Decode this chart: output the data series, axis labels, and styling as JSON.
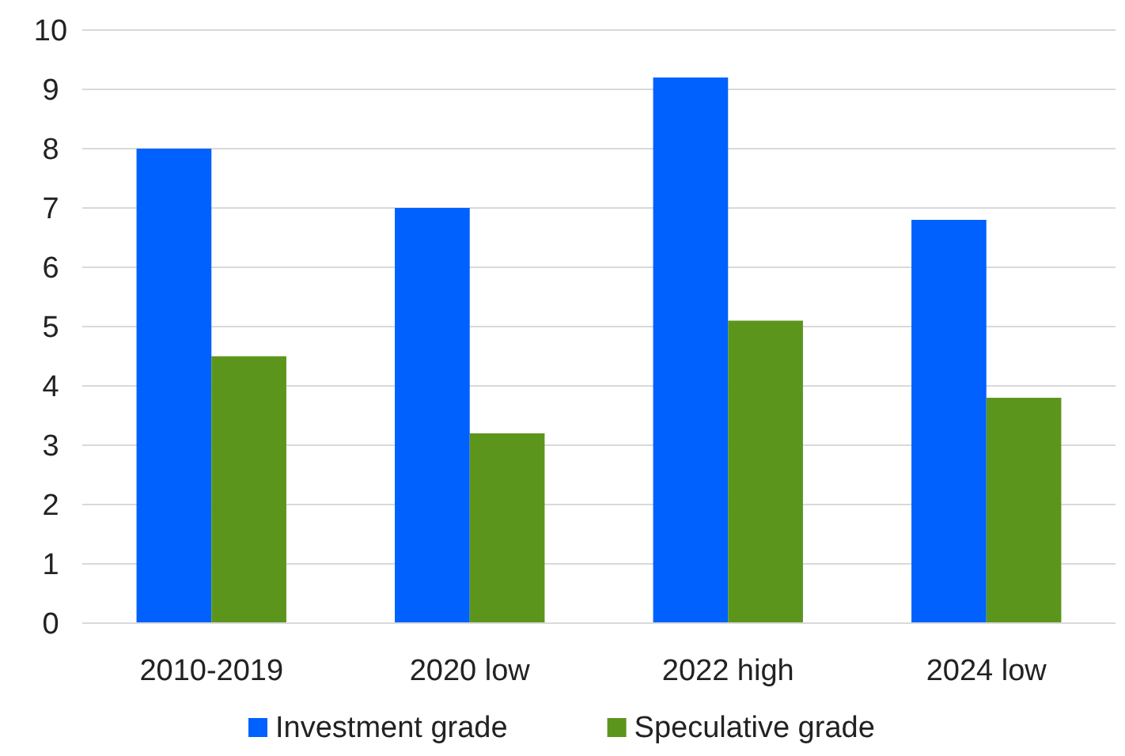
{
  "chart_data": {
    "type": "bar",
    "categories": [
      "2010-2019",
      "2020 low",
      "2022 high",
      "2024 low"
    ],
    "series": [
      {
        "name": "Investment grade",
        "color": "#0061fe",
        "values": [
          8,
          7,
          9.2,
          6.8
        ]
      },
      {
        "name": "Speculative grade",
        "color": "#5c951c",
        "values": [
          4.5,
          3.2,
          5.1,
          3.8
        ]
      }
    ],
    "ylim": [
      0,
      10
    ],
    "yticks": [
      0,
      1,
      2,
      3,
      4,
      5,
      6,
      7,
      8,
      9,
      10
    ],
    "grid": "y",
    "legend": "bottom"
  }
}
